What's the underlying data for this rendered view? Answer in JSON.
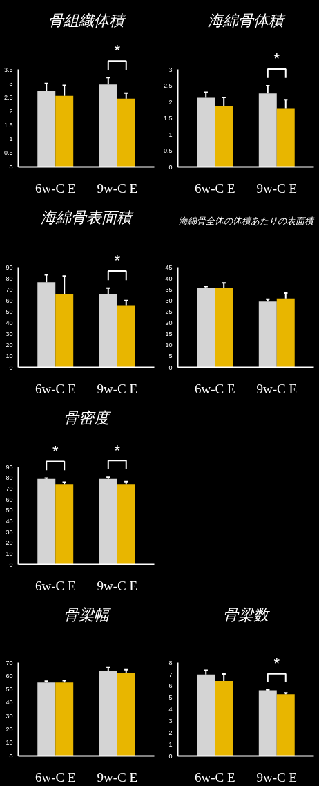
{
  "chart_data": [
    {
      "type": "bar",
      "title": "骨組織体積",
      "categories": [
        "6w-C E",
        "9w-C E"
      ],
      "series": [
        {
          "color": "#d4d4d4",
          "values": [
            2.74,
            2.96
          ],
          "errors": [
            [
              2.74,
              3.0
            ],
            [
              2.96,
              3.21
            ]
          ]
        },
        {
          "color": "#e8b600",
          "values": [
            2.55,
            2.45
          ],
          "errors": [
            [
              2.55,
              2.93
            ],
            [
              2.45,
              2.65
            ]
          ]
        }
      ],
      "ylim": [
        0,
        3.5
      ],
      "yticks": [
        0,
        0.5,
        1,
        1.5,
        2,
        2.5,
        3,
        3.5
      ],
      "annotations": [
        "*"
      ]
    },
    {
      "type": "bar",
      "title": "海綿骨体積",
      "categories": [
        "6w-C E",
        "9w-C E"
      ],
      "series": [
        {
          "color": "#d4d4d4",
          "values": [
            2.13,
            2.26
          ],
          "errors": [
            [
              2.13,
              2.3
            ],
            [
              2.26,
              2.5
            ]
          ]
        },
        {
          "color": "#e8b600",
          "values": [
            1.87,
            1.81
          ],
          "errors": [
            [
              1.87,
              2.14
            ],
            [
              1.81,
              2.07
            ]
          ]
        }
      ],
      "ylim": [
        0,
        3
      ],
      "yticks": [
        0,
        0.5,
        1,
        1.5,
        2,
        2.5,
        3
      ],
      "annotations": [
        "*"
      ]
    },
    {
      "type": "bar",
      "title": "海綿骨表面積",
      "categories": [
        "6w-C E",
        "9w-C E"
      ],
      "series": [
        {
          "color": "#d4d4d4",
          "values": [
            76.7,
            66
          ],
          "errors": [
            [
              76.7,
              83.3
            ],
            [
              66,
              71.4
            ]
          ]
        },
        {
          "color": "#e8b600",
          "values": [
            66,
            56
          ],
          "errors": [
            [
              66,
              82.3
            ],
            [
              56,
              60.2
            ]
          ]
        }
      ],
      "ylim": [
        0,
        90
      ],
      "yticks": [
        0,
        10,
        20,
        30,
        40,
        50,
        60,
        70,
        80,
        90
      ],
      "annotations": [
        "*"
      ]
    },
    {
      "type": "bar",
      "title": "海綿骨全体の体積あたりの表面積",
      "categories": [
        "6w-C E",
        "9w-C E"
      ],
      "series": [
        {
          "color": "#d4d4d4",
          "values": [
            35.9,
            29.6
          ],
          "errors": [
            [
              35.9,
              36.4
            ],
            [
              29.6,
              30.7
            ]
          ]
        },
        {
          "color": "#e8b600",
          "values": [
            35.6,
            31.0
          ],
          "errors": [
            [
              35.6,
              38.0
            ],
            [
              31.0,
              33.4
            ]
          ]
        }
      ],
      "ylim": [
        0,
        45
      ],
      "yticks": [
        0,
        5,
        10,
        15,
        20,
        25,
        30,
        35,
        40,
        45
      ]
    },
    {
      "type": "bar",
      "title": "骨密度",
      "categories": [
        "6w-C E",
        "9w-C E"
      ],
      "series": [
        {
          "color": "#d4d4d4",
          "values": [
            79.0,
            79.0
          ],
          "errors": [
            [
              79.0,
              79.8
            ],
            [
              79.0,
              80.6
            ]
          ]
        },
        {
          "color": "#e8b600",
          "values": [
            74.2,
            74.2
          ],
          "errors": [
            [
              74.2,
              76.0
            ],
            [
              74.2,
              76.5
            ]
          ]
        }
      ],
      "ylim": [
        0,
        90
      ],
      "yticks": [
        0,
        10,
        20,
        30,
        40,
        50,
        60,
        70,
        80,
        90
      ],
      "annotations": [
        "*",
        "*"
      ]
    },
    {
      "type": "bar",
      "title": "骨梁幅",
      "categories": [
        "6w-C E",
        "9w-C E"
      ],
      "series": [
        {
          "color": "#d4d4d4",
          "values": [
            55.1,
            63.9
          ],
          "errors": [
            [
              55.1,
              56.2
            ],
            [
              63.9,
              66.3
            ]
          ]
        },
        {
          "color": "#e8b600",
          "values": [
            55.1,
            62.1
          ],
          "errors": [
            [
              55.1,
              56.6
            ],
            [
              62.1,
              64.7
            ]
          ]
        }
      ],
      "ylim": [
        0,
        70
      ],
      "yticks": [
        0,
        10,
        20,
        30,
        40,
        50,
        60,
        70
      ]
    },
    {
      "type": "bar",
      "title": "骨梁数",
      "categories": [
        "6w-C E",
        "9w-C E"
      ],
      "series": [
        {
          "color": "#d4d4d4",
          "values": [
            6.98,
            5.63
          ],
          "errors": [
            [
              6.98,
              7.36
            ],
            [
              5.63,
              5.68
            ]
          ]
        },
        {
          "color": "#e8b600",
          "values": [
            6.44,
            5.29
          ],
          "errors": [
            [
              6.44,
              7.03
            ],
            [
              5.29,
              5.41
            ]
          ]
        }
      ],
      "ylim": [
        0,
        8
      ],
      "yticks": [
        0,
        1,
        2,
        3,
        4,
        5,
        6,
        7,
        8
      ],
      "annotations": [
        "*"
      ]
    }
  ]
}
